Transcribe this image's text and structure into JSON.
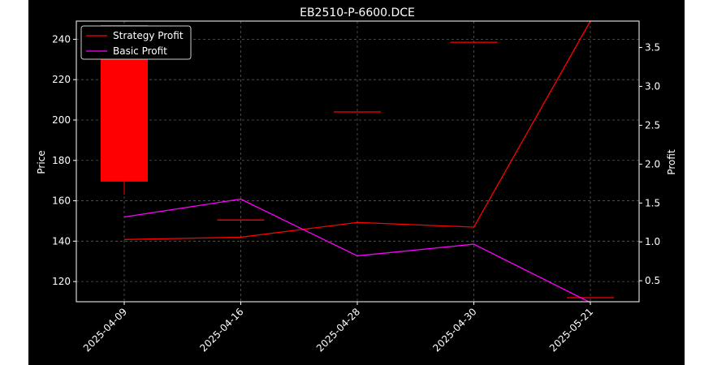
{
  "chart_data": {
    "type": "candlestick+line",
    "title": "EB2510-P-6600.DCE",
    "x_categories": [
      "2025-04-09",
      "2025-04-16",
      "2025-04-28",
      "2025-04-30",
      "2025-05-21"
    ],
    "left_axis": {
      "label": "Price",
      "ylim": [
        110,
        249
      ],
      "ticks": [
        120,
        140,
        160,
        180,
        200,
        220,
        240
      ]
    },
    "right_axis": {
      "label": "Profit",
      "ylim": [
        0.23,
        3.84
      ],
      "ticks": [
        "0.5",
        "1.0",
        "1.5",
        "2.0",
        "2.5",
        "3.0",
        "3.5"
      ]
    },
    "candles": [
      {
        "x": "2025-04-09",
        "open": 247,
        "high": 247,
        "low": 163,
        "close": 169.5
      },
      {
        "x": "2025-04-16",
        "open": 150.5,
        "high": 150.5,
        "low": 150.5,
        "close": 150.5
      },
      {
        "x": "2025-04-28",
        "open": 204,
        "high": 204,
        "low": 204,
        "close": 204
      },
      {
        "x": "2025-04-30",
        "open": 238.5,
        "high": 238.5,
        "low": 238.5,
        "close": 238.5
      },
      {
        "x": "2025-05-21",
        "open": 112,
        "high": 112,
        "low": 112,
        "close": 112
      }
    ],
    "series": [
      {
        "name": "Strategy Profit",
        "axis": "right",
        "color": "#ff0000",
        "values": [
          1.03,
          1.06,
          1.25,
          1.19,
          3.84
        ]
      },
      {
        "name": "Basic Profit",
        "axis": "right",
        "color": "#ff00ff",
        "values": [
          1.32,
          1.55,
          0.82,
          0.97,
          0.22
        ]
      }
    ],
    "grid": true,
    "legend_placement": "top-left",
    "colors": {
      "background": "#000000",
      "candle": "#ff0000",
      "axes": "#ffffff",
      "grid": "#808080"
    }
  }
}
